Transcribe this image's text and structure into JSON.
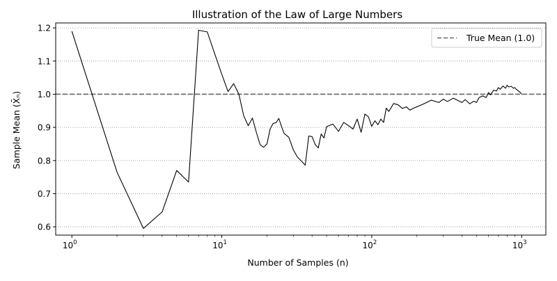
{
  "chart_data": {
    "type": "line",
    "title": "Illustration of the Law of Large Numbers",
    "xlabel": "Number of Samples (n)",
    "ylabel": "Sample Mean (X̄ₙ)",
    "xscale": "log",
    "xlim": [
      0.78,
      1450
    ],
    "ylim": [
      0.575,
      1.215
    ],
    "x_ticks": [
      {
        "value": 1,
        "base": "10",
        "exp": "0"
      },
      {
        "value": 10,
        "base": "10",
        "exp": "1"
      },
      {
        "value": 100,
        "base": "10",
        "exp": "2"
      },
      {
        "value": 1000,
        "base": "10",
        "exp": "3"
      }
    ],
    "y_ticks": [
      "0.6",
      "0.7",
      "0.8",
      "0.9",
      "1.0",
      "1.1",
      "1.2"
    ],
    "grid": "horizontal, dotted",
    "legend": {
      "placement": "top-right",
      "entries": [
        "True Mean (1.0)"
      ]
    },
    "colors": {
      "series": "#000000",
      "reference": "#666666",
      "grid": "#888888"
    },
    "reference_line": {
      "name": "True Mean (1.0)",
      "y": 1.0,
      "style": "dashed"
    },
    "series": [
      {
        "x": [
          1,
          2,
          3,
          4,
          5,
          6,
          7,
          8,
          9,
          10,
          11,
          12,
          13,
          14,
          15,
          16,
          17,
          18,
          19,
          20,
          21,
          22,
          23,
          24,
          25,
          26,
          28,
          30,
          32,
          34,
          36,
          37,
          38,
          40,
          42,
          44,
          46,
          48,
          50,
          55,
          60,
          65,
          70,
          75,
          80,
          85,
          90,
          95,
          100,
          105,
          110,
          115,
          120,
          125,
          130,
          140,
          150,
          160,
          170,
          180,
          190,
          200,
          220,
          250,
          280,
          300,
          320,
          350,
          380,
          400,
          420,
          450,
          480,
          500,
          520,
          550,
          580,
          600,
          620,
          650,
          680,
          700,
          720,
          750,
          780,
          800,
          820,
          850,
          880,
          900,
          920,
          950,
          980,
          1000
        ],
        "y": [
          1.19,
          0.765,
          0.595,
          0.645,
          0.77,
          0.735,
          1.193,
          1.188,
          1.12,
          1.06,
          1.008,
          1.032,
          1.0,
          0.935,
          0.905,
          0.928,
          0.885,
          0.848,
          0.84,
          0.85,
          0.895,
          0.912,
          0.914,
          0.927,
          0.903,
          0.882,
          0.87,
          0.832,
          0.81,
          0.798,
          0.786,
          0.83,
          0.874,
          0.872,
          0.848,
          0.838,
          0.88,
          0.868,
          0.902,
          0.91,
          0.888,
          0.915,
          0.905,
          0.895,
          0.925,
          0.885,
          0.94,
          0.932,
          0.903,
          0.92,
          0.908,
          0.925,
          0.915,
          0.958,
          0.948,
          0.972,
          0.968,
          0.957,
          0.962,
          0.952,
          0.958,
          0.962,
          0.97,
          0.982,
          0.975,
          0.985,
          0.978,
          0.988,
          0.98,
          0.975,
          0.984,
          0.971,
          0.979,
          0.975,
          0.99,
          0.995,
          0.99,
          1.005,
          0.998,
          1.012,
          1.01,
          1.02,
          1.015,
          1.025,
          1.018,
          1.027,
          1.022,
          1.024,
          1.018,
          1.02,
          1.015,
          1.01,
          1.005,
          1.0
        ]
      }
    ]
  }
}
